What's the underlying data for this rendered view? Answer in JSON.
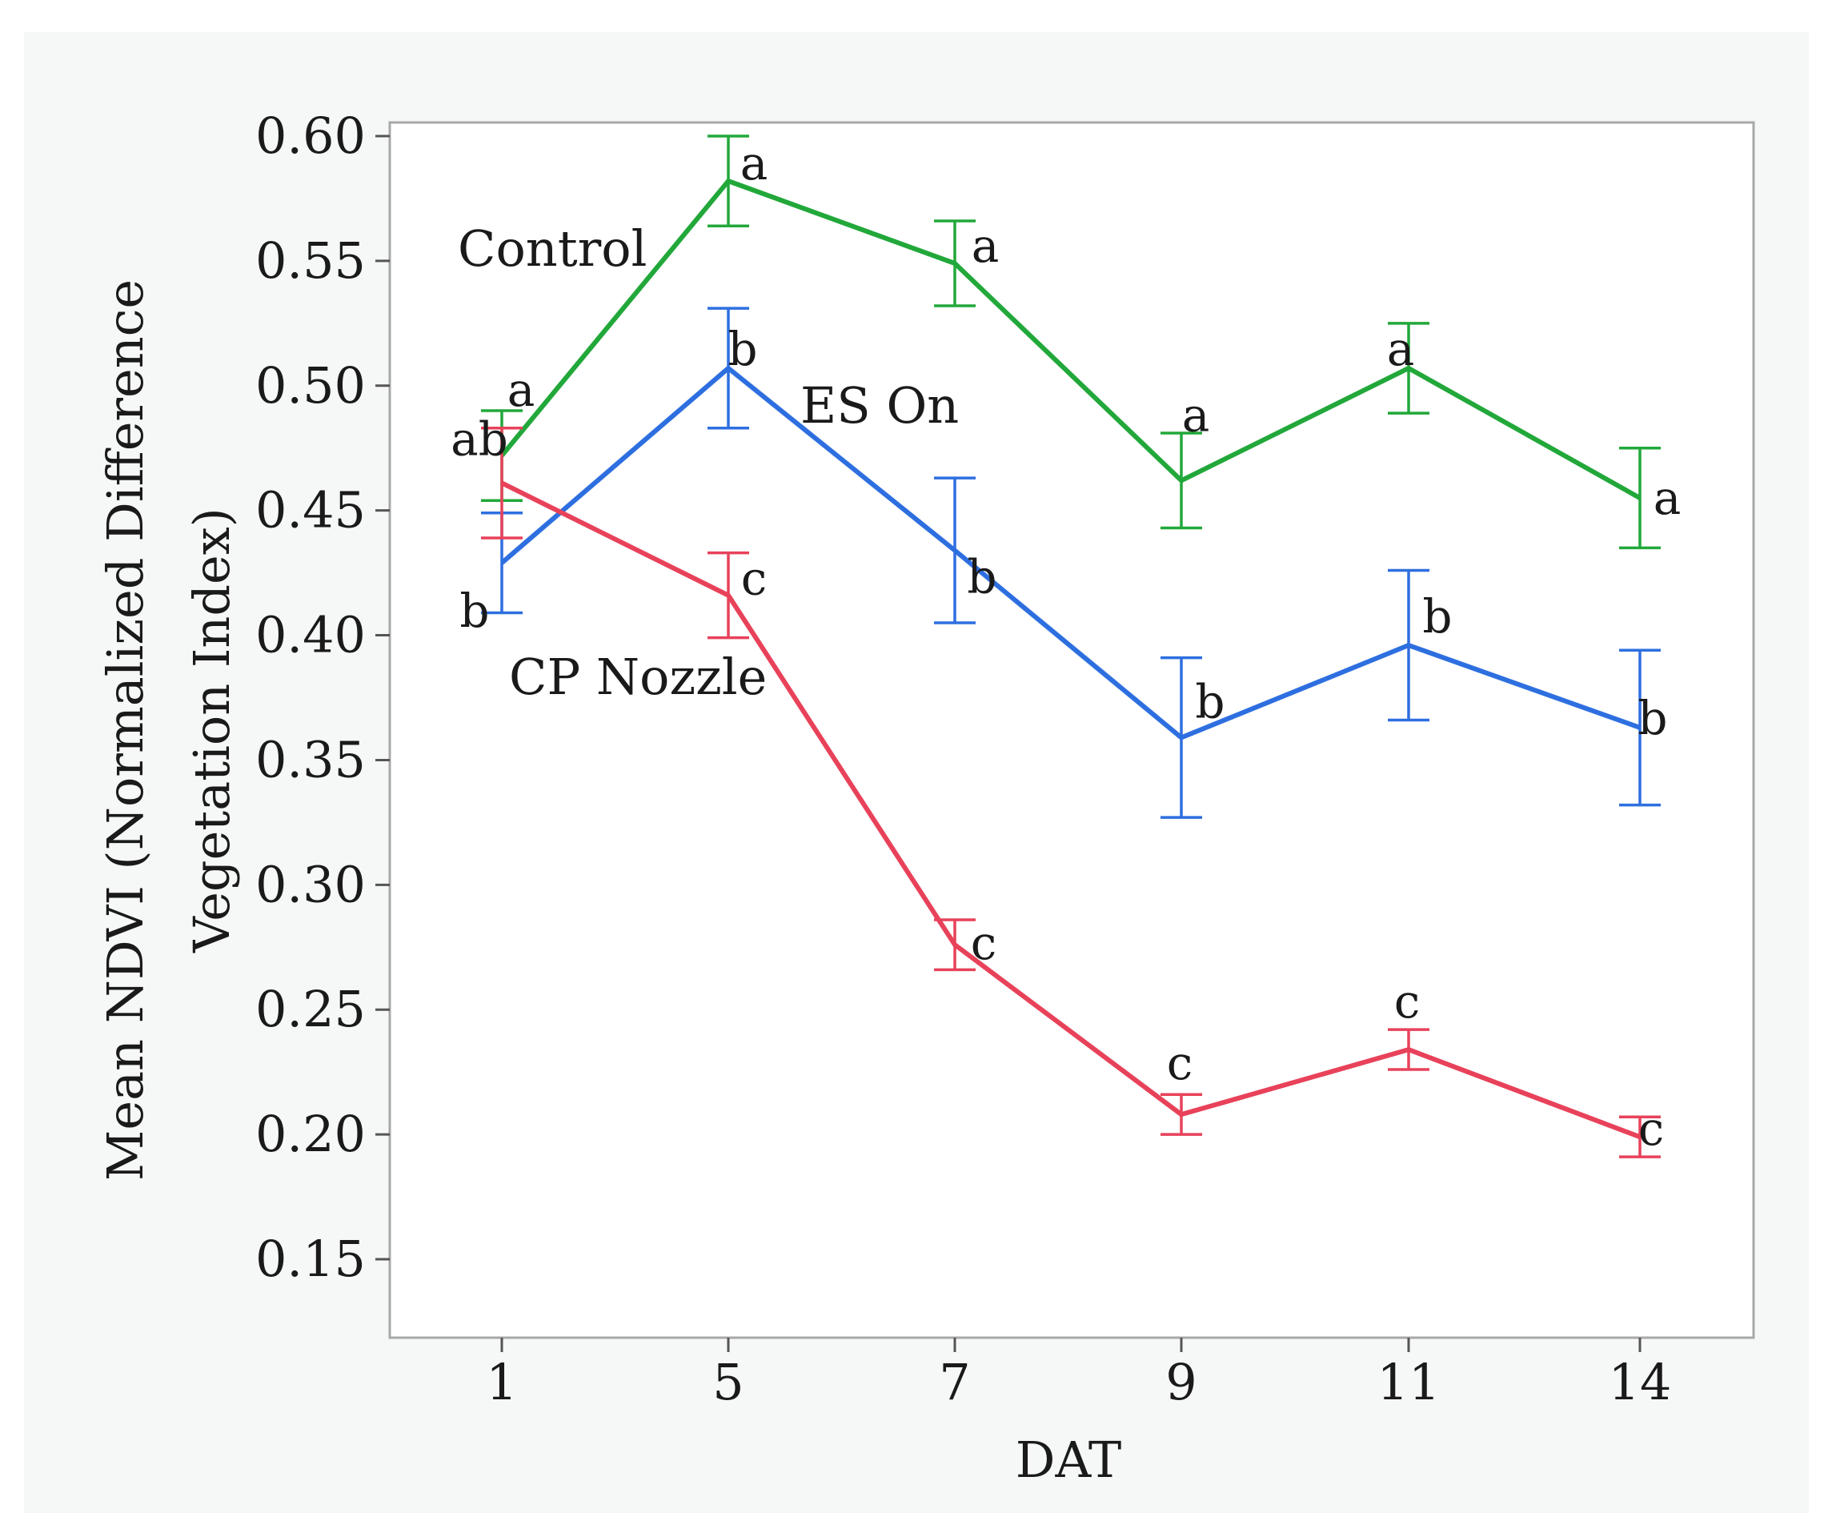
{
  "chart_data": {
    "type": "line",
    "xlabel": "DAT",
    "ylabel_lines": [
      "Mean NDVI (Normalized Difference",
      "Vegetation Index)"
    ],
    "categories": [
      "1",
      "5",
      "7",
      "9",
      "11",
      "14"
    ],
    "ylim": [
      0.12,
      0.605
    ],
    "yticks": [
      0.6,
      0.55,
      0.5,
      0.45,
      0.4,
      0.35,
      0.3,
      0.25,
      0.2,
      0.15
    ],
    "ytick_labels": [
      "0.60",
      "0.55",
      "0.50",
      "0.45",
      "0.40",
      "0.35",
      "0.30",
      "0.25",
      "0.20",
      "0.15"
    ],
    "series": [
      {
        "name": "Control",
        "color": "#22a83a",
        "values": [
          0.472,
          0.582,
          0.549,
          0.462,
          0.507,
          0.455
        ],
        "err": [
          0.018,
          0.018,
          0.017,
          0.019,
          0.018,
          0.02
        ],
        "letters": [
          "a",
          "a",
          "a",
          "a",
          "a",
          "a"
        ]
      },
      {
        "name": "ES On",
        "color": "#2e6fe0",
        "values": [
          0.429,
          0.507,
          0.434,
          0.359,
          0.396,
          0.363
        ],
        "err": [
          0.02,
          0.024,
          0.029,
          0.032,
          0.03,
          0.031
        ],
        "letters": [
          "b",
          "b",
          "b",
          "b",
          "b",
          "b"
        ]
      },
      {
        "name": "CP Nozzle",
        "color": "#e8425a",
        "values": [
          0.461,
          0.416,
          0.276,
          0.208,
          0.234,
          0.199
        ],
        "err": [
          0.022,
          0.017,
          0.01,
          0.008,
          0.008,
          0.008
        ],
        "letters": [
          "ab",
          "c",
          "c",
          "c",
          "c",
          "c"
        ]
      }
    ]
  }
}
